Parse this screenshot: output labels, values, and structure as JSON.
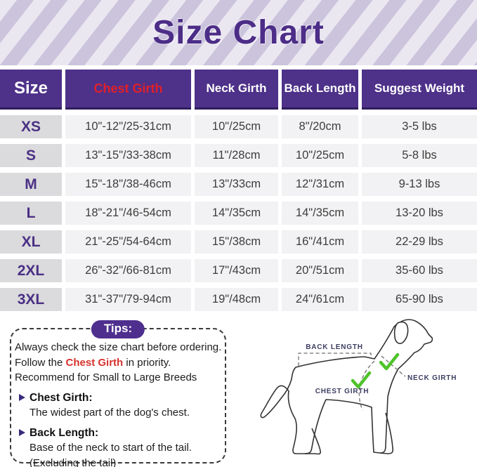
{
  "banner": {
    "title": "Size Chart"
  },
  "chart_data": {
    "type": "table",
    "title": "Size Chart",
    "columns": [
      "Size",
      "Chest Girth",
      "Neck Girth",
      "Back Length",
      "Suggest Weight"
    ],
    "rows": [
      [
        "XS",
        "10\"-12\"/25-31cm",
        "10\"/25cm",
        "8\"/20cm",
        "3-5 lbs"
      ],
      [
        "S",
        "13\"-15\"/33-38cm",
        "11\"/28cm",
        "10\"/25cm",
        "5-8 lbs"
      ],
      [
        "M",
        "15\"-18\"/38-46cm",
        "13\"/33cm",
        "12\"/31cm",
        "9-13 lbs"
      ],
      [
        "L",
        "18\"-21\"/46-54cm",
        "14\"/35cm",
        "14\"/35cm",
        "13-20 lbs"
      ],
      [
        "XL",
        "21\"-25\"/54-64cm",
        "15\"/38cm",
        "16\"/41cm",
        "22-29 lbs"
      ],
      [
        "2XL",
        "26\"-32\"/66-81cm",
        "17\"/43cm",
        "20\"/51cm",
        "35-60 lbs"
      ],
      [
        "3XL",
        "31\"-37\"/79-94cm",
        "19\"/48cm",
        "24\"/61cm",
        "65-90 lbs"
      ]
    ]
  },
  "tips": {
    "pill": "Tips:",
    "line1": "Always check the size chart before ordering.",
    "line2_prefix": "Follow the ",
    "line2_highlight": "Chest Girth",
    "line2_suffix": " in priority.",
    "line3": "Recommend for Small to Large Breeds",
    "items": [
      {
        "label": "Chest Girth:",
        "desc1": "The widest part of the dog's chest.",
        "desc2": ""
      },
      {
        "label": "Back Length:",
        "desc1": "Base of the neck to start of the tail.",
        "desc2": "(Excluding the tail)"
      }
    ]
  },
  "diagram": {
    "back_length_label": "BACK LENGTH",
    "neck_girth_label": "NECK GIRTH",
    "chest_girth_label": "CHEST GIRTH"
  },
  "colors": {
    "header_purple": "#4e3189",
    "title_purple": "#4c2d87",
    "highlight_red": "#d7312c",
    "check_green": "#4fc32b",
    "stripe_light": "#eae7f1",
    "stripe_dark": "#cbc4dc"
  }
}
